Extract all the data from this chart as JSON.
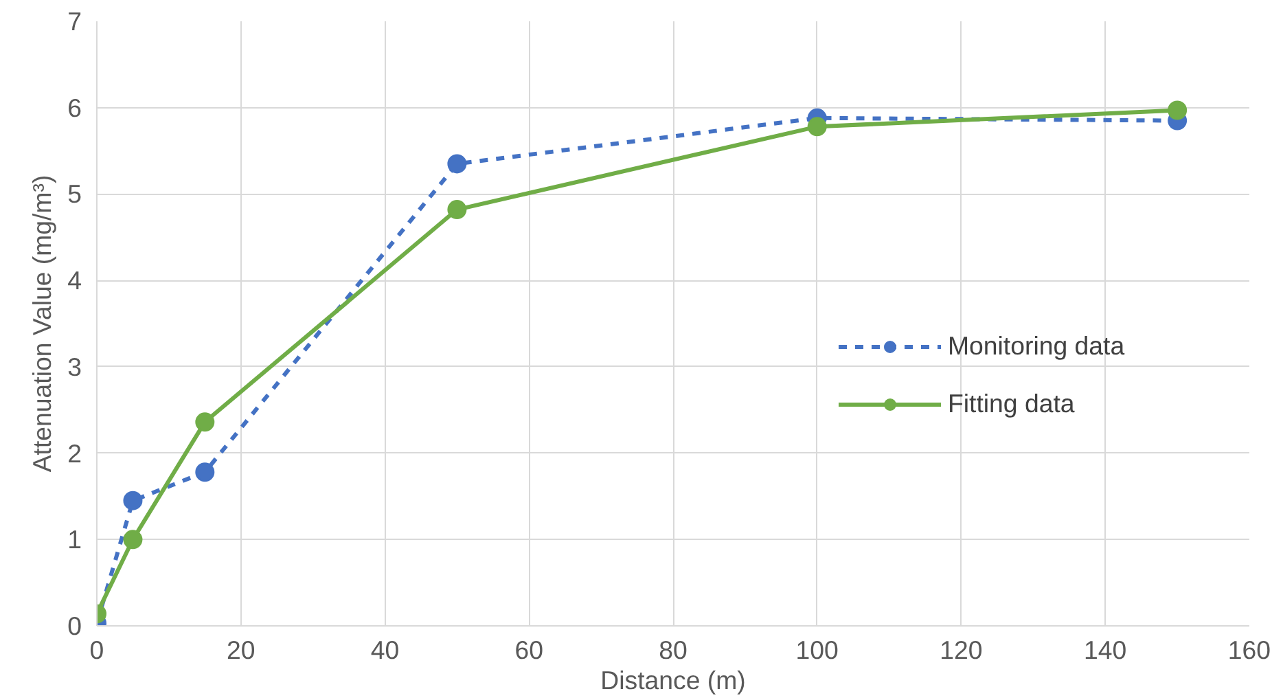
{
  "chart_data": {
    "type": "line",
    "xlabel": "Distance (m)",
    "ylabel": "Attenuation Value (mg/m³)",
    "x": [
      0,
      5,
      15,
      50,
      100,
      150
    ],
    "series": [
      {
        "name": "Monitoring data",
        "color": "#4472c4",
        "values": [
          0.03,
          1.45,
          1.78,
          5.35,
          5.88,
          5.85
        ],
        "line_style": "dashed"
      },
      {
        "name": "Fitting data",
        "color": "#70ad47",
        "values": [
          0.14,
          1.0,
          2.36,
          4.82,
          5.78,
          5.97
        ],
        "line_style": "solid"
      }
    ],
    "xlim": [
      0,
      160
    ],
    "xticks": [
      0,
      20,
      40,
      60,
      80,
      100,
      120,
      140,
      160
    ],
    "ylim": [
      0,
      7
    ],
    "yticks": [
      0,
      1,
      2,
      3,
      4,
      5,
      6,
      7
    ],
    "grid": true,
    "legend": "right",
    "marker": "circle"
  }
}
